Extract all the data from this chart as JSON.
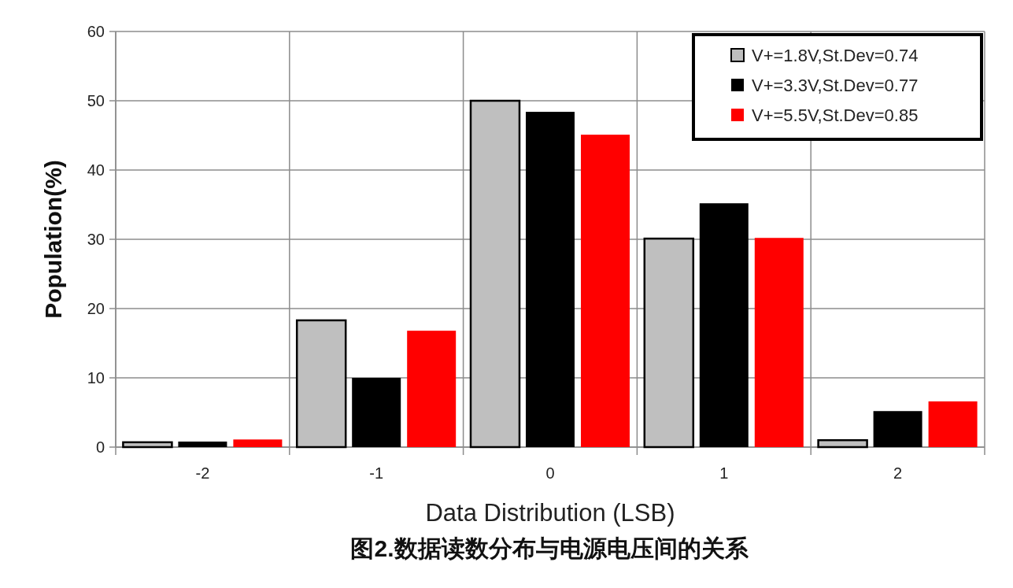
{
  "chart_data": {
    "type": "bar",
    "title": "图2.数据读数分布与电源电压间的关系",
    "xlabel": "Data Distribution (LSB)",
    "ylabel": "Population(%)",
    "categories": [
      "-2",
      "-1",
      "0",
      "1",
      "2"
    ],
    "series": [
      {
        "name": "V+=1.8V,St.Dev=0.74",
        "color": "#bfbfbf",
        "values": [
          0.7,
          18.3,
          50,
          30.1,
          1.0
        ]
      },
      {
        "name": "V+=3.3V,St.Dev=0.77",
        "color": "#000000",
        "values": [
          0.8,
          10.0,
          48.4,
          35.2,
          5.2
        ]
      },
      {
        "name": "V+=5.5V,St.Dev=0.85",
        "color": "#ff0000",
        "values": [
          1.1,
          16.8,
          45.1,
          30.2,
          6.6
        ]
      }
    ],
    "ylim": [
      0,
      60
    ],
    "yticks": [
      0,
      10,
      20,
      30,
      40,
      50,
      60
    ],
    "grid": true,
    "legend": "top right"
  }
}
